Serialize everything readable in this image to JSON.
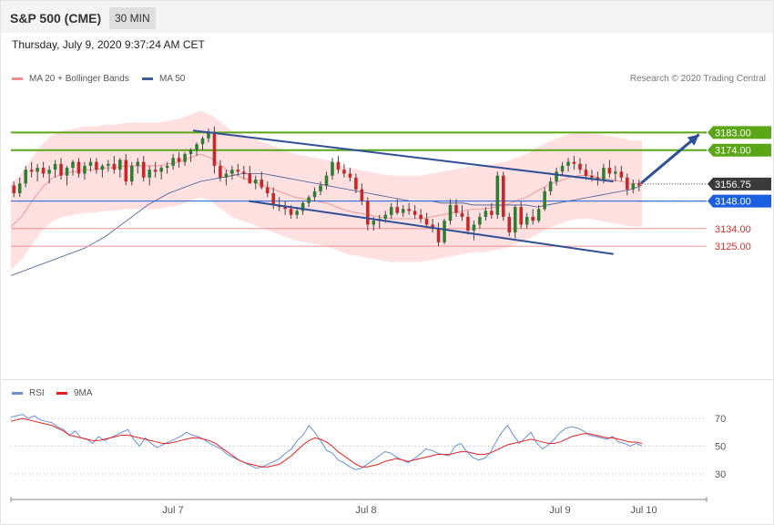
{
  "header": {
    "title": "S&P 500 (CME)",
    "timeframe": "30 MIN",
    "datetime": "Thursday, July 9, 2020 9:37:24 AM CET"
  },
  "legend": {
    "bb_label": "MA 20 + Bollinger Bands",
    "ma50_label": "MA 50",
    "credit": "Research © 2020 Trading Central"
  },
  "rsi_legend": {
    "rsi_label": "RSI",
    "ma_label": "9MA"
  },
  "colors": {
    "up": "#2e7d32",
    "down": "#c62828",
    "band": "#ffdada",
    "resistance": "#5aa617",
    "support_blue": "#1a5fe0",
    "support_red": "#f09090",
    "channel": "#2f4f98",
    "ma50": "#3d5a99",
    "ma20": "#e57373",
    "rsi": "#6a8fd8",
    "rsi_ma": "#e02020"
  },
  "chart_data": [
    {
      "type": "candlestick",
      "title": "",
      "y_range": [
        3060,
        3205
      ],
      "x_labels": [
        "Jul 7",
        "Jul 8",
        "Jul 9",
        "Jul 10"
      ],
      "levels": [
        {
          "value": 3183.0,
          "label": "3183.00",
          "kind": "resistance"
        },
        {
          "value": 3174.0,
          "label": "3174.00",
          "kind": "resistance"
        },
        {
          "value": 3156.75,
          "label": "3156.75",
          "kind": "last_price"
        },
        {
          "value": 3148.0,
          "label": "3148.00",
          "kind": "pivot"
        },
        {
          "value": 3134.0,
          "label": "3134.00",
          "kind": "support"
        },
        {
          "value": 3125.0,
          "label": "3125.00",
          "kind": "support"
        }
      ],
      "channel": {
        "upper": [
          [
            0,
            3184
          ],
          [
            96,
            3158
          ]
        ],
        "lower": [
          [
            28,
            3148
          ],
          [
            96,
            3121
          ]
        ]
      },
      "forecast_arrow": {
        "from": [
          112,
          3157
        ],
        "to": [
          124,
          3182
        ]
      },
      "ohlc": [
        [
          3156,
          3158,
          3150,
          3152
        ],
        [
          3152,
          3160,
          3150,
          3157
        ],
        [
          3157,
          3166,
          3155,
          3164
        ],
        [
          3164,
          3168,
          3160,
          3163
        ],
        [
          3163,
          3167,
          3158,
          3165
        ],
        [
          3165,
          3168,
          3160,
          3162
        ],
        [
          3162,
          3166,
          3157,
          3164
        ],
        [
          3164,
          3169,
          3160,
          3167
        ],
        [
          3167,
          3170,
          3159,
          3161
        ],
        [
          3161,
          3166,
          3156,
          3165
        ],
        [
          3165,
          3169,
          3161,
          3168
        ],
        [
          3168,
          3170,
          3160,
          3162
        ],
        [
          3162,
          3168,
          3159,
          3166
        ],
        [
          3166,
          3170,
          3163,
          3168
        ],
        [
          3168,
          3170,
          3162,
          3164
        ],
        [
          3164,
          3167,
          3160,
          3166
        ],
        [
          3166,
          3169,
          3163,
          3167
        ],
        [
          3167,
          3171,
          3162,
          3164
        ],
        [
          3164,
          3170,
          3160,
          3169
        ],
        [
          3169,
          3172,
          3156,
          3158
        ],
        [
          3158,
          3168,
          3156,
          3166
        ],
        [
          3166,
          3170,
          3162,
          3168
        ],
        [
          3168,
          3171,
          3158,
          3160
        ],
        [
          3160,
          3166,
          3156,
          3164
        ],
        [
          3164,
          3168,
          3160,
          3163
        ],
        [
          3163,
          3166,
          3159,
          3165
        ],
        [
          3165,
          3168,
          3162,
          3166
        ],
        [
          3166,
          3172,
          3164,
          3170
        ],
        [
          3170,
          3173,
          3165,
          3168
        ],
        [
          3168,
          3173,
          3166,
          3172
        ],
        [
          3172,
          3175,
          3168,
          3174
        ],
        [
          3174,
          3178,
          3171,
          3177
        ],
        [
          3177,
          3181,
          3174,
          3180
        ],
        [
          3180,
          3185,
          3178,
          3183
        ],
        [
          3183,
          3186,
          3162,
          3166
        ],
        [
          3166,
          3169,
          3158,
          3160
        ],
        [
          3160,
          3164,
          3156,
          3162
        ],
        [
          3162,
          3166,
          3159,
          3164
        ],
        [
          3164,
          3167,
          3161,
          3163
        ],
        [
          3163,
          3166,
          3159,
          3162
        ],
        [
          3162,
          3166,
          3158,
          3157
        ],
        [
          3157,
          3161,
          3154,
          3159
        ],
        [
          3159,
          3163,
          3154,
          3155
        ],
        [
          3155,
          3158,
          3150,
          3152
        ],
        [
          3152,
          3155,
          3144,
          3146
        ],
        [
          3146,
          3150,
          3143,
          3145
        ],
        [
          3145,
          3148,
          3141,
          3144
        ],
        [
          3144,
          3146,
          3139,
          3141
        ],
        [
          3141,
          3145,
          3139,
          3143
        ],
        [
          3143,
          3148,
          3141,
          3147
        ],
        [
          3147,
          3151,
          3145,
          3150
        ],
        [
          3150,
          3155,
          3148,
          3153
        ],
        [
          3153,
          3158,
          3151,
          3156
        ],
        [
          3156,
          3163,
          3154,
          3161
        ],
        [
          3161,
          3170,
          3159,
          3168
        ],
        [
          3168,
          3171,
          3162,
          3164
        ],
        [
          3164,
          3167,
          3160,
          3162
        ],
        [
          3162,
          3165,
          3158,
          3160
        ],
        [
          3160,
          3162,
          3152,
          3154
        ],
        [
          3154,
          3157,
          3146,
          3148
        ],
        [
          3148,
          3150,
          3133,
          3136
        ],
        [
          3136,
          3140,
          3133,
          3138
        ],
        [
          3138,
          3141,
          3134,
          3139
        ],
        [
          3139,
          3143,
          3137,
          3141
        ],
        [
          3141,
          3147,
          3139,
          3145
        ],
        [
          3145,
          3149,
          3141,
          3142
        ],
        [
          3142,
          3146,
          3140,
          3144
        ],
        [
          3144,
          3147,
          3141,
          3143
        ],
        [
          3143,
          3146,
          3139,
          3141
        ],
        [
          3141,
          3144,
          3137,
          3139
        ],
        [
          3139,
          3142,
          3135,
          3136
        ],
        [
          3136,
          3139,
          3132,
          3134
        ],
        [
          3134,
          3137,
          3125,
          3127
        ],
        [
          3127,
          3139,
          3126,
          3138
        ],
        [
          3138,
          3149,
          3136,
          3146
        ],
        [
          3146,
          3149,
          3140,
          3142
        ],
        [
          3142,
          3146,
          3138,
          3140
        ],
        [
          3140,
          3143,
          3131,
          3133
        ],
        [
          3133,
          3138,
          3128,
          3136
        ],
        [
          3136,
          3142,
          3134,
          3140
        ],
        [
          3140,
          3145,
          3138,
          3143
        ],
        [
          3143,
          3147,
          3139,
          3141
        ],
        [
          3141,
          3163,
          3139,
          3161
        ],
        [
          3161,
          3163,
          3138,
          3140
        ],
        [
          3140,
          3142,
          3130,
          3132
        ],
        [
          3132,
          3146,
          3129,
          3145
        ],
        [
          3145,
          3148,
          3134,
          3136
        ],
        [
          3136,
          3142,
          3134,
          3140
        ],
        [
          3140,
          3144,
          3136,
          3138
        ],
        [
          3138,
          3146,
          3137,
          3144
        ],
        [
          3144,
          3155,
          3143,
          3153
        ],
        [
          3153,
          3160,
          3151,
          3158
        ],
        [
          3158,
          3165,
          3156,
          3163
        ],
        [
          3163,
          3168,
          3161,
          3166
        ],
        [
          3166,
          3170,
          3163,
          3168
        ],
        [
          3168,
          3171,
          3164,
          3167
        ],
        [
          3167,
          3170,
          3162,
          3164
        ],
        [
          3164,
          3167,
          3159,
          3161
        ],
        [
          3161,
          3164,
          3158,
          3160
        ],
        [
          3160,
          3163,
          3156,
          3159
        ],
        [
          3159,
          3167,
          3157,
          3165
        ],
        [
          3165,
          3169,
          3160,
          3162
        ],
        [
          3162,
          3166,
          3158,
          3163
        ],
        [
          3163,
          3166,
          3158,
          3160
        ],
        [
          3160,
          3162,
          3151,
          3154
        ],
        [
          3154,
          3159,
          3152,
          3157
        ],
        [
          3157,
          3159,
          3153,
          3156
        ]
      ],
      "ma50": [
        3110,
        3112,
        3114,
        3116,
        3118,
        3120,
        3122,
        3124,
        3127,
        3130,
        3134,
        3138,
        3142,
        3146,
        3149,
        3152,
        3154,
        3156,
        3158,
        3159,
        3160,
        3161,
        3162,
        3162,
        3162,
        3161,
        3160,
        3159,
        3158,
        3157,
        3156,
        3155,
        3154,
        3153,
        3152,
        3151,
        3150,
        3149,
        3148,
        3148,
        3148,
        3147,
        3147,
        3147,
        3146,
        3146,
        3146,
        3146,
        3146,
        3146,
        3145,
        3146,
        3147,
        3148,
        3149,
        3150,
        3151,
        3152,
        3153,
        3154,
        3156
      ],
      "ma20": [
        3135,
        3140,
        3148,
        3155,
        3160,
        3162,
        3163,
        3164,
        3164,
        3165,
        3165,
        3166,
        3166,
        3166,
        3166,
        3167,
        3168,
        3170,
        3172,
        3170,
        3166,
        3162,
        3160,
        3158,
        3156,
        3154,
        3152,
        3150,
        3149,
        3148,
        3147,
        3145,
        3143,
        3142,
        3141,
        3140,
        3139,
        3139,
        3139,
        3139,
        3140,
        3141,
        3142,
        3143,
        3144,
        3144,
        3145,
        3146,
        3148,
        3150,
        3153,
        3156,
        3158,
        3160,
        3161,
        3161,
        3160,
        3159,
        3158,
        3157,
        3157
      ]
    },
    {
      "type": "line",
      "title": "",
      "y_range": [
        20,
        80
      ],
      "y_ticks": [
        70,
        50,
        30
      ],
      "series": [
        {
          "name": "RSI",
          "values": [
            71,
            72,
            73,
            70,
            72,
            69,
            68,
            67,
            64,
            62,
            58,
            61,
            56,
            55,
            52,
            57,
            54,
            56,
            58,
            60,
            62,
            55,
            50,
            56,
            52,
            49,
            51,
            53,
            55,
            57,
            60,
            58,
            57,
            55,
            52,
            50,
            48,
            44,
            42,
            40,
            38,
            36,
            34,
            35,
            37,
            39,
            41,
            45,
            48,
            54,
            58,
            65,
            60,
            54,
            47,
            45,
            40,
            38,
            35,
            33,
            34,
            37,
            40,
            43,
            46,
            45,
            42,
            40,
            38,
            41,
            44,
            48,
            47,
            45,
            44,
            43,
            50,
            52,
            46,
            42,
            40,
            41,
            45,
            53,
            60,
            65,
            58,
            52,
            56,
            60,
            52,
            48,
            51,
            55,
            60,
            63,
            64,
            63,
            61,
            58,
            57,
            56,
            55,
            57,
            53,
            52,
            50,
            52,
            50
          ]
        },
        {
          "name": "9MA",
          "values": [
            68,
            69,
            70,
            69,
            68,
            67,
            66,
            65,
            63,
            61,
            58,
            57,
            56,
            55,
            54,
            54,
            55,
            56,
            57,
            58,
            58,
            57,
            56,
            55,
            54,
            53,
            52,
            52,
            53,
            54,
            55,
            56,
            56,
            55,
            54,
            52,
            49,
            46,
            43,
            40,
            38,
            37,
            36,
            35,
            35,
            36,
            37,
            40,
            43,
            47,
            51,
            54,
            56,
            55,
            53,
            50,
            46,
            43,
            40,
            37,
            35,
            35,
            36,
            37,
            39,
            40,
            41,
            40,
            39,
            40,
            41,
            42,
            43,
            44,
            44,
            44,
            45,
            46,
            46,
            45,
            44,
            44,
            45,
            47,
            49,
            51,
            52,
            53,
            54,
            55,
            54,
            53,
            52,
            52,
            53,
            55,
            57,
            58,
            59,
            59,
            58,
            57,
            56,
            56,
            55,
            54,
            53,
            53,
            52
          ]
        }
      ]
    }
  ]
}
